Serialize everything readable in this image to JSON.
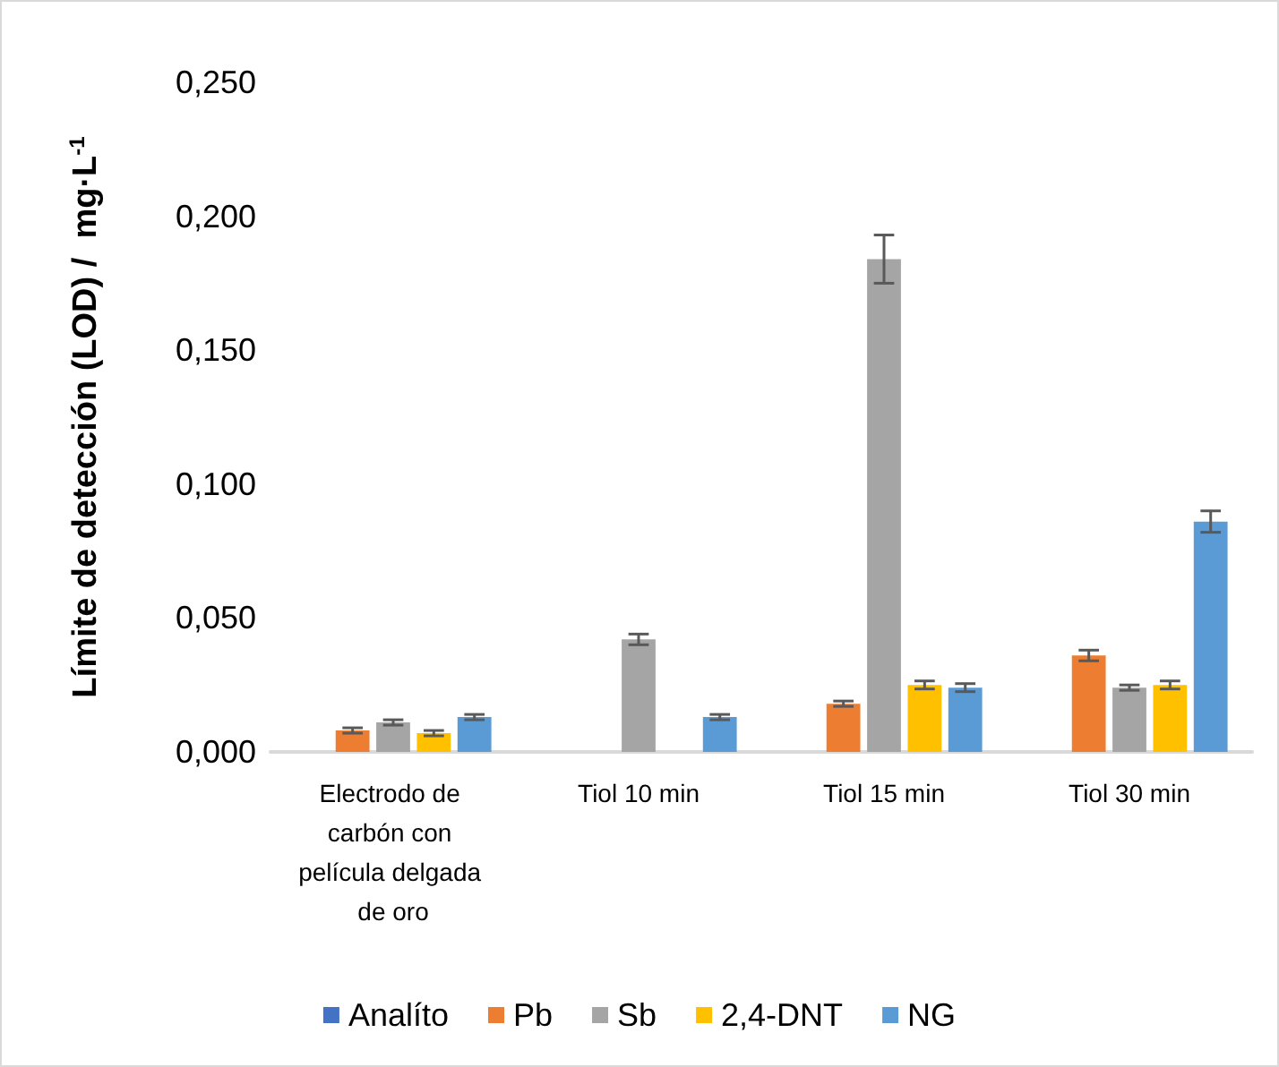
{
  "chart_data": {
    "type": "bar",
    "ylabel": "Límite de detección (LOD) /  mg·L$^{-1}$",
    "categories": [
      "Electrodo de carbón con película delgada de oro",
      "Tiol 10 min",
      "Tiol 15 min",
      "Tiol 30 min"
    ],
    "series": [
      {
        "name": "Analíto",
        "color": "#4472c4",
        "values": [
          0,
          0,
          0,
          0
        ]
      },
      {
        "name": "Pb",
        "color": "#ed7d31",
        "values": [
          0.008,
          0,
          0.018,
          0.036
        ],
        "errors": [
          0.001,
          null,
          0.001,
          0.002
        ]
      },
      {
        "name": "Sb",
        "color": "#a5a5a5",
        "values": [
          0.011,
          0.042,
          0.184,
          0.024
        ],
        "errors": [
          0.001,
          0.002,
          0.009,
          0.001
        ]
      },
      {
        "name": "2,4-DNT",
        "color": "#ffc000",
        "values": [
          0.007,
          0,
          0.025,
          0.025
        ],
        "errors": [
          0.001,
          null,
          0.0015,
          0.0015
        ]
      },
      {
        "name": "NG",
        "color": "#5b9bd5",
        "values": [
          0.013,
          0.013,
          0.024,
          0.086
        ],
        "errors": [
          0.001,
          0.001,
          0.0015,
          0.004
        ]
      }
    ],
    "ylim": [
      0,
      0.25
    ],
    "yticks": [
      {
        "value": 0,
        "label": "0,000"
      },
      {
        "value": 0.05,
        "label": "0,050"
      },
      {
        "value": 0.1,
        "label": "0,100"
      },
      {
        "value": 0.15,
        "label": "0,150"
      },
      {
        "value": 0.2,
        "label": "0,200"
      },
      {
        "value": 0.25,
        "label": "0,250"
      }
    ],
    "grid": false,
    "legend": "bottom"
  }
}
